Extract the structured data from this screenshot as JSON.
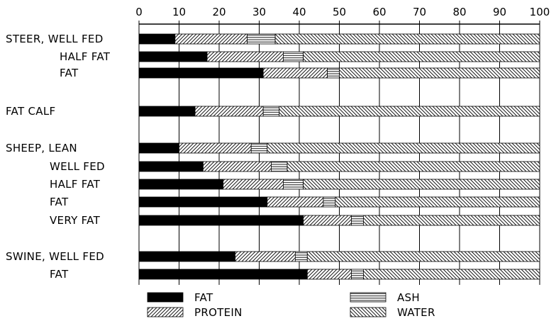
{
  "chart_data": {
    "type": "bar",
    "orientation": "horizontal",
    "stacked": true,
    "title": "",
    "xlabel": "",
    "ylabel": "",
    "xlim": [
      0,
      100
    ],
    "x_ticks": [
      0,
      10,
      20,
      30,
      40,
      50,
      60,
      70,
      80,
      90,
      100
    ],
    "grid": true,
    "legend_position": "bottom",
    "categories": [
      "STEER, WELL FED",
      "HALF FAT",
      "FAT",
      "FAT CALF",
      "SHEEP, LEAN",
      "WELL FED",
      "HALF FAT",
      "FAT",
      "VERY FAT",
      "SWINE, WELL FED",
      "FAT"
    ],
    "series": [
      {
        "name": "FAT",
        "pattern": "solid",
        "color": "#000000",
        "values": [
          9,
          17,
          31,
          14,
          10,
          16,
          21,
          32,
          41,
          24,
          42
        ]
      },
      {
        "name": "PROTEIN",
        "pattern": "diagonal-hatch",
        "values": [
          18,
          19,
          16,
          17,
          18,
          17,
          15,
          14,
          12,
          15,
          11
        ]
      },
      {
        "name": "ASH",
        "pattern": "horizontal-lines",
        "values": [
          7,
          5,
          3,
          4,
          4,
          4,
          5,
          3,
          3,
          3,
          3
        ]
      },
      {
        "name": "WATER",
        "pattern": "cross-hatch",
        "values": [
          66,
          59,
          50,
          65,
          68,
          63,
          59,
          51,
          44,
          58,
          44
        ]
      }
    ]
  }
}
